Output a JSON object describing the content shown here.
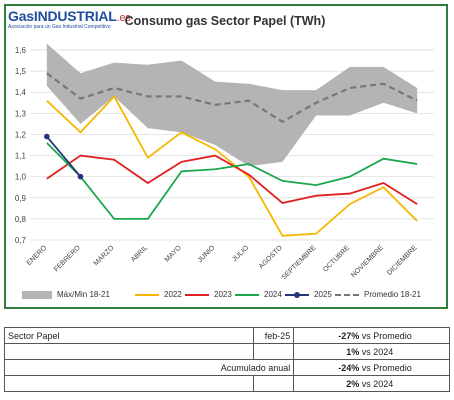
{
  "logo": {
    "brand_g": "G",
    "brand_rest": "asINDUSTRIAL",
    "brand_tld": ".es",
    "tagline": "Asociación para un Gas Industrial Competitivo"
  },
  "chart_data": {
    "type": "line",
    "title": "Consumo gas Sector Papel (TWh)",
    "categories": [
      "ENERO",
      "FEBRERO",
      "MARZO",
      "ABRIL",
      "MAYO",
      "JUNIO",
      "JULIO",
      "AGOSTO",
      "SEPTIEMBRE",
      "OCTUBRE",
      "NOVIEMBRE",
      "DICIEMBRE"
    ],
    "ylim": [
      0.7,
      1.6
    ],
    "yticks": [
      "0,7",
      "0,8",
      "0,9",
      "1,0",
      "1,1",
      "1,2",
      "1,3",
      "1,4",
      "1,5",
      "1,6"
    ],
    "ytick_values": [
      0.7,
      0.8,
      0.9,
      1.0,
      1.1,
      1.2,
      1.3,
      1.4,
      1.5,
      1.6
    ],
    "grid": true,
    "band": {
      "name": "Máx/Min 18-21",
      "color": "#b4b4b4",
      "max": [
        1.63,
        1.49,
        1.54,
        1.53,
        1.55,
        1.45,
        1.44,
        1.41,
        1.41,
        1.52,
        1.52,
        1.42
      ],
      "min": [
        1.43,
        1.25,
        1.38,
        1.23,
        1.21,
        1.15,
        1.05,
        1.07,
        1.29,
        1.29,
        1.35,
        1.3
      ]
    },
    "series": [
      {
        "name": "2022",
        "color": "#f5b700",
        "values": [
          1.36,
          1.21,
          1.38,
          1.09,
          1.21,
          1.13,
          1.0,
          0.72,
          0.73,
          0.87,
          0.95,
          0.79
        ]
      },
      {
        "name": "2023",
        "color": "#e02020",
        "values": [
          0.99,
          1.1,
          1.08,
          0.97,
          1.07,
          1.1,
          1.01,
          0.875,
          0.91,
          0.92,
          0.97,
          0.87
        ]
      },
      {
        "name": "2024",
        "color": "#1aa64a",
        "values": [
          1.16,
          1.0,
          0.8,
          0.8,
          1.025,
          1.035,
          1.06,
          0.98,
          0.96,
          1.0,
          1.085,
          1.06
        ]
      },
      {
        "name": "2025",
        "color": "#26357a",
        "values": [
          1.19,
          1.0,
          null,
          null,
          null,
          null,
          null,
          null,
          null,
          null,
          null,
          null
        ]
      },
      {
        "name": "Promedio 18-21",
        "color": "#777777",
        "values": [
          1.49,
          1.37,
          1.42,
          1.38,
          1.38,
          1.34,
          1.36,
          1.26,
          1.35,
          1.42,
          1.44,
          1.36
        ]
      }
    ]
  },
  "summary": {
    "sector": "Sector Papel",
    "period": "feb-25",
    "accumulated_label": "Acumulado anual",
    "rows": [
      {
        "pct": "-27%",
        "text": "vs Promedio"
      },
      {
        "pct": "1%",
        "text": "vs 2024"
      },
      {
        "pct": "-24%",
        "text": "vs Promedio"
      },
      {
        "pct": "2%",
        "text": "vs 2024"
      }
    ]
  }
}
